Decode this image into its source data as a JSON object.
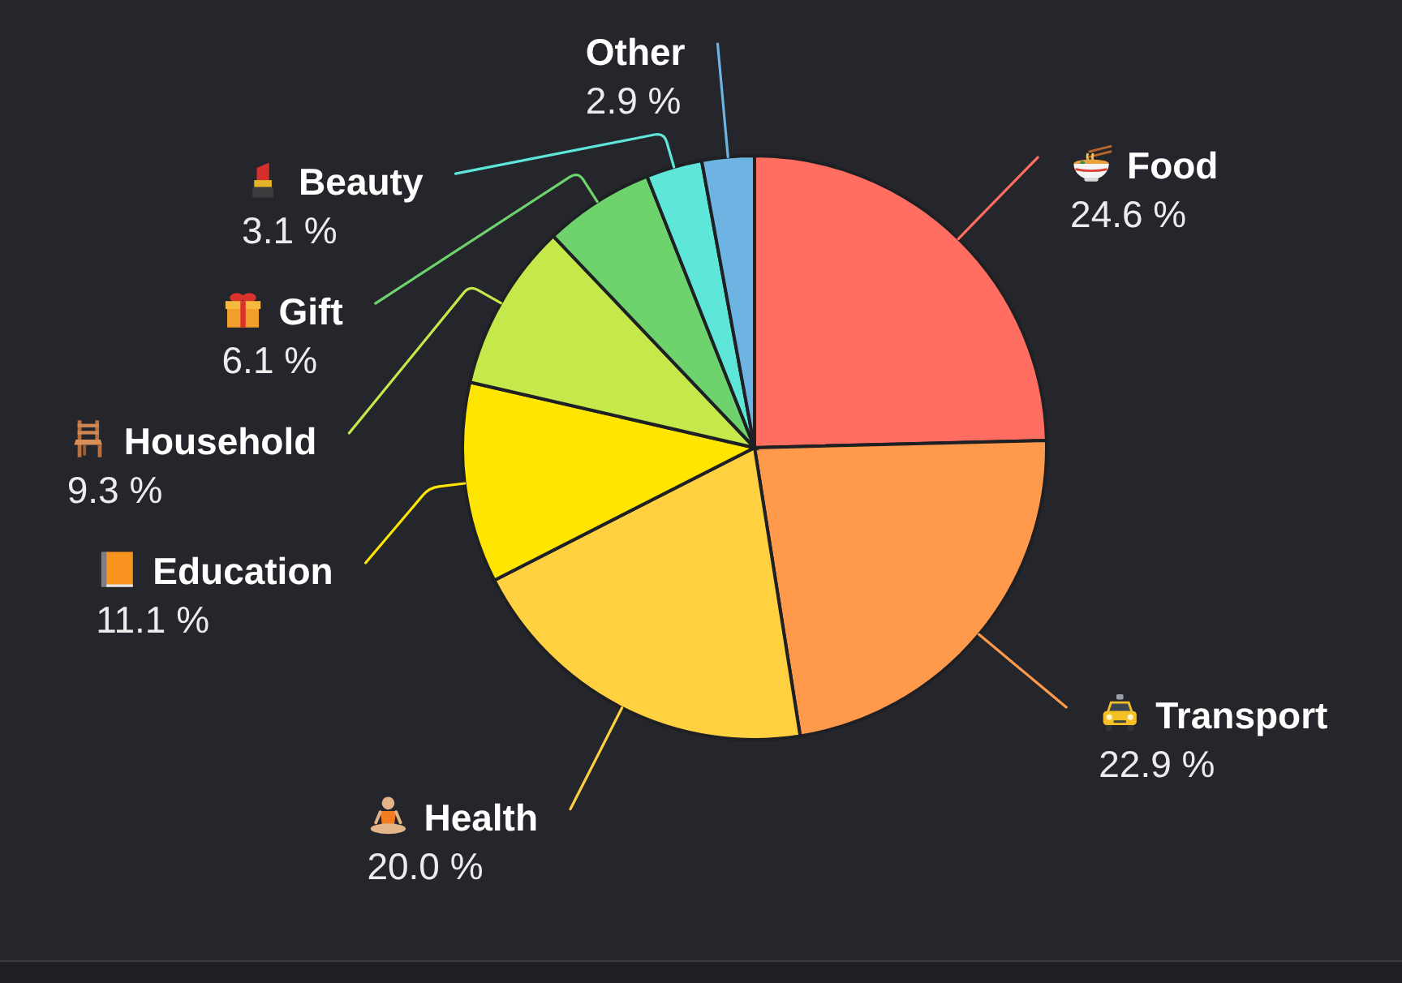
{
  "chart_data": {
    "type": "pie",
    "categories": [
      "Food",
      "Transport",
      "Health",
      "Education",
      "Household",
      "Gift",
      "Beauty",
      "Other"
    ],
    "values": [
      24.6,
      22.9,
      20.0,
      11.1,
      9.3,
      6.1,
      3.1,
      2.9
    ],
    "colors": [
      "#ff6e61",
      "#ff9a4c",
      "#ffd141",
      "#ffe600",
      "#c5e84b",
      "#6ed36c",
      "#5ee6d8",
      "#6db4e3"
    ],
    "value_labels": [
      "24.6 %",
      "22.9 %",
      "20.0 %",
      "11.1 %",
      "9.3 %",
      "6.1 %",
      "3.1 %",
      "2.9 %"
    ]
  }
}
